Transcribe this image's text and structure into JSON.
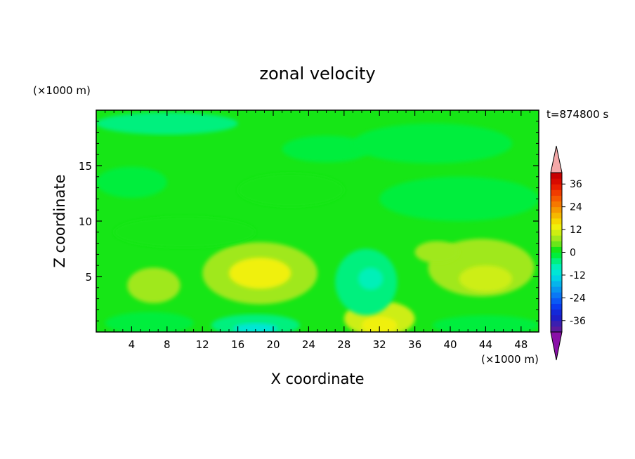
{
  "chart_data": {
    "type": "heatmap",
    "title": "zonal velocity",
    "xlabel": "X coordinate",
    "ylabel": "Z coordinate",
    "x_unit_label": "(×1000 m)",
    "y_unit_label": "(×1000 m)",
    "time_label": "t=874800 s",
    "xlim": [
      0,
      50
    ],
    "ylim": [
      0,
      20
    ],
    "x_ticks": [
      4,
      8,
      12,
      16,
      20,
      24,
      28,
      32,
      36,
      40,
      44,
      48
    ],
    "y_ticks": [
      5,
      10,
      15
    ],
    "colorbar": {
      "levels": [
        -42,
        -39,
        -36,
        -33,
        -30,
        -27,
        -24,
        -21,
        -18,
        -15,
        -12,
        -9,
        -6,
        -3,
        0,
        3,
        6,
        9,
        12,
        15,
        18,
        21,
        24,
        27,
        30,
        33,
        36,
        39,
        42
      ],
      "colors": [
        "#5a1a9e",
        "#3b1fb0",
        "#1e1ec8",
        "#1428d8",
        "#0a3cf0",
        "#0a5af5",
        "#0a78f5",
        "#0896f0",
        "#06b4ec",
        "#00d2e6",
        "#00e6d6",
        "#00f0b8",
        "#00f07e",
        "#00ee3c",
        "#16e616",
        "#6ae61a",
        "#a0e81c",
        "#cdee12",
        "#f0f00a",
        "#f5d800",
        "#f5b800",
        "#f59800",
        "#f57800",
        "#f55a00",
        "#f03c00",
        "#e81e00",
        "#d80a00",
        "#c80000"
      ],
      "tick_labels": [
        "36",
        "24",
        "12",
        "0",
        "-12",
        "-24",
        "-36"
      ],
      "tick_values": [
        36,
        24,
        12,
        0,
        -12,
        -24,
        -36
      ],
      "over_color": "#f4a8a8",
      "under_color": "#8a10a8"
    },
    "background_level": 0,
    "regions": [
      {
        "cx": 18.5,
        "cz": 5.3,
        "rx": 6.5,
        "rz": 2.8,
        "value": 7
      },
      {
        "cx": 18.5,
        "cz": 5.3,
        "rx": 3.5,
        "rz": 1.4,
        "value": 13
      },
      {
        "cx": 6.5,
        "cz": 4.2,
        "rx": 3.0,
        "rz": 1.6,
        "value": 7
      },
      {
        "cx": 43.5,
        "cz": 5.8,
        "rx": 6.0,
        "rz": 2.6,
        "value": 6
      },
      {
        "cx": 44.0,
        "cz": 4.8,
        "rx": 3.0,
        "rz": 1.2,
        "value": 10
      },
      {
        "cx": 32.0,
        "cz": 1.2,
        "rx": 4.0,
        "rz": 1.6,
        "value": 9
      },
      {
        "cx": 32.0,
        "cz": 0.6,
        "rx": 2.0,
        "rz": 0.8,
        "value": 14
      },
      {
        "cx": 30.5,
        "cz": 4.5,
        "rx": 3.5,
        "rz": 3.0,
        "value": -4
      },
      {
        "cx": 31.0,
        "cz": 4.8,
        "rx": 1.4,
        "rz": 1.0,
        "value": -9
      },
      {
        "cx": 18.0,
        "cz": 0.6,
        "rx": 5.0,
        "rz": 1.0,
        "value": -5
      },
      {
        "cx": 18.0,
        "cz": 0.3,
        "rx": 2.5,
        "rz": 0.5,
        "value": -10
      },
      {
        "cx": 6.0,
        "cz": 0.8,
        "rx": 5.0,
        "rz": 1.0,
        "value": -3
      },
      {
        "cx": 44.0,
        "cz": 0.6,
        "rx": 6.0,
        "rz": 0.9,
        "value": -3
      },
      {
        "cx": 8.0,
        "cz": 18.8,
        "rx": 8.0,
        "rz": 1.0,
        "value": -4
      },
      {
        "cx": 26.0,
        "cz": 16.5,
        "rx": 5.0,
        "rz": 1.2,
        "value": -2
      },
      {
        "cx": 38.0,
        "cz": 17.0,
        "rx": 9.0,
        "rz": 1.8,
        "value": -2
      },
      {
        "cx": 4.0,
        "cz": 13.5,
        "rx": 4.0,
        "rz": 1.4,
        "value": -2
      },
      {
        "cx": 41.0,
        "cz": 12.0,
        "rx": 9.0,
        "rz": 2.0,
        "value": -2
      },
      {
        "cx": 22.0,
        "cz": 12.8,
        "rx": 6.0,
        "rz": 1.5,
        "value": 2
      },
      {
        "cx": 10.0,
        "cz": 9.0,
        "rx": 8.0,
        "rz": 1.4,
        "value": 2
      },
      {
        "cx": 38.5,
        "cz": 7.2,
        "rx": 2.5,
        "rz": 1.0,
        "value": 6
      }
    ]
  }
}
